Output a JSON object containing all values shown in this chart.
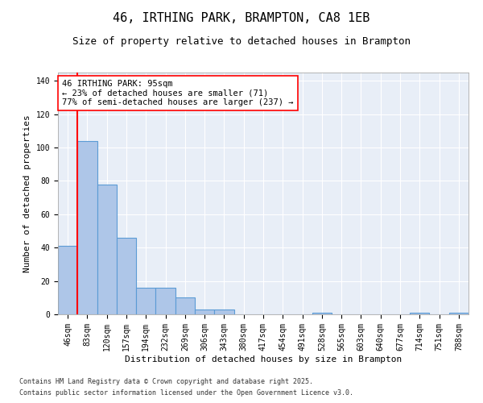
{
  "title": "46, IRTHING PARK, BRAMPTON, CA8 1EB",
  "subtitle": "Size of property relative to detached houses in Brampton",
  "xlabel": "Distribution of detached houses by size in Brampton",
  "ylabel": "Number of detached properties",
  "bar_labels": [
    "46sqm",
    "83sqm",
    "120sqm",
    "157sqm",
    "194sqm",
    "232sqm",
    "269sqm",
    "306sqm",
    "343sqm",
    "380sqm",
    "417sqm",
    "454sqm",
    "491sqm",
    "528sqm",
    "565sqm",
    "603sqm",
    "640sqm",
    "677sqm",
    "714sqm",
    "751sqm",
    "788sqm"
  ],
  "bar_values": [
    41,
    104,
    78,
    46,
    16,
    16,
    10,
    3,
    3,
    0,
    0,
    0,
    0,
    1,
    0,
    0,
    0,
    0,
    1,
    0,
    1
  ],
  "bar_color": "#aec6e8",
  "bar_edge_color": "#5b9bd5",
  "subject_line_color": "#ff0000",
  "annotation_text": "46 IRTHING PARK: 95sqm\n← 23% of detached houses are smaller (71)\n77% of semi-detached houses are larger (237) →",
  "annotation_box_color": "#ff0000",
  "ylim": [
    0,
    145
  ],
  "yticks": [
    0,
    20,
    40,
    60,
    80,
    100,
    120,
    140
  ],
  "background_color": "#e8eef7",
  "footer_line1": "Contains HM Land Registry data © Crown copyright and database right 2025.",
  "footer_line2": "Contains public sector information licensed under the Open Government Licence v3.0.",
  "title_fontsize": 11,
  "subtitle_fontsize": 9,
  "axis_label_fontsize": 8,
  "tick_fontsize": 7,
  "annotation_fontsize": 7.5,
  "footer_fontsize": 6
}
